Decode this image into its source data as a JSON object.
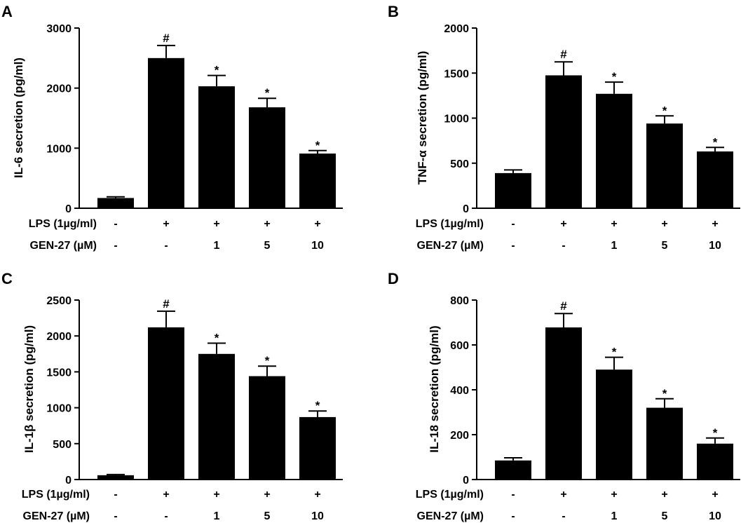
{
  "chart_data": [
    {
      "panel": "A",
      "type": "bar",
      "ylabel": "IL-6 secretion (pg/ml)",
      "ylim": [
        0,
        3000
      ],
      "yticks": [
        0,
        1000,
        2000,
        3000
      ],
      "values": [
        170,
        2500,
        2030,
        1680,
        910
      ],
      "errors": [
        20,
        210,
        180,
        150,
        50
      ],
      "significance": [
        "",
        "#",
        "*",
        "*",
        "*"
      ],
      "condition_rows": [
        {
          "label": "LPS (1µg/ml)",
          "values": [
            "-",
            "+",
            "+",
            "+",
            "+"
          ]
        },
        {
          "label": "GEN-27 (µM)",
          "values": [
            "-",
            "-",
            "1",
            "5",
            "10"
          ]
        }
      ]
    },
    {
      "panel": "B",
      "type": "bar",
      "ylabel": "TNF-α secretion (pg/ml)",
      "ylim": [
        0,
        2000
      ],
      "yticks": [
        0,
        500,
        1000,
        1500,
        2000
      ],
      "values": [
        390,
        1475,
        1270,
        940,
        630
      ],
      "errors": [
        35,
        150,
        130,
        85,
        45
      ],
      "significance": [
        "",
        "#",
        "*",
        "*",
        "*"
      ],
      "condition_rows": [
        {
          "label": "LPS (1µg/ml)",
          "values": [
            "-",
            "+",
            "+",
            "+",
            "+"
          ]
        },
        {
          "label": "GEN-27 (µM)",
          "values": [
            "-",
            "-",
            "1",
            "5",
            "10"
          ]
        }
      ]
    },
    {
      "panel": "C",
      "type": "bar",
      "ylabel": "IL-1β secretion (pg/ml)",
      "ylim": [
        0,
        2500
      ],
      "yticks": [
        0,
        500,
        1000,
        1500,
        2000,
        2500
      ],
      "values": [
        60,
        2120,
        1750,
        1440,
        870
      ],
      "errors": [
        10,
        225,
        150,
        140,
        85
      ],
      "significance": [
        "",
        "#",
        "*",
        "*",
        "*"
      ],
      "condition_rows": [
        {
          "label": "LPS (1µg/ml)",
          "values": [
            "-",
            "+",
            "+",
            "+",
            "+"
          ]
        },
        {
          "label": "GEN-27 (µM)",
          "values": [
            "-",
            "-",
            "1",
            "5",
            "10"
          ]
        }
      ]
    },
    {
      "panel": "D",
      "type": "bar",
      "ylabel": "IL-18 secretion (pg/ml)",
      "ylim": [
        0,
        800
      ],
      "yticks": [
        0,
        200,
        400,
        600,
        800
      ],
      "values": [
        85,
        678,
        490,
        320,
        160
      ],
      "errors": [
        12,
        62,
        55,
        40,
        25
      ],
      "significance": [
        "",
        "#",
        "*",
        "*",
        "*"
      ],
      "condition_rows": [
        {
          "label": "LPS (1µg/ml)",
          "values": [
            "-",
            "+",
            "+",
            "+",
            "+"
          ]
        },
        {
          "label": "GEN-27 (µM)",
          "values": [
            "-",
            "-",
            "1",
            "5",
            "10"
          ]
        }
      ]
    }
  ]
}
